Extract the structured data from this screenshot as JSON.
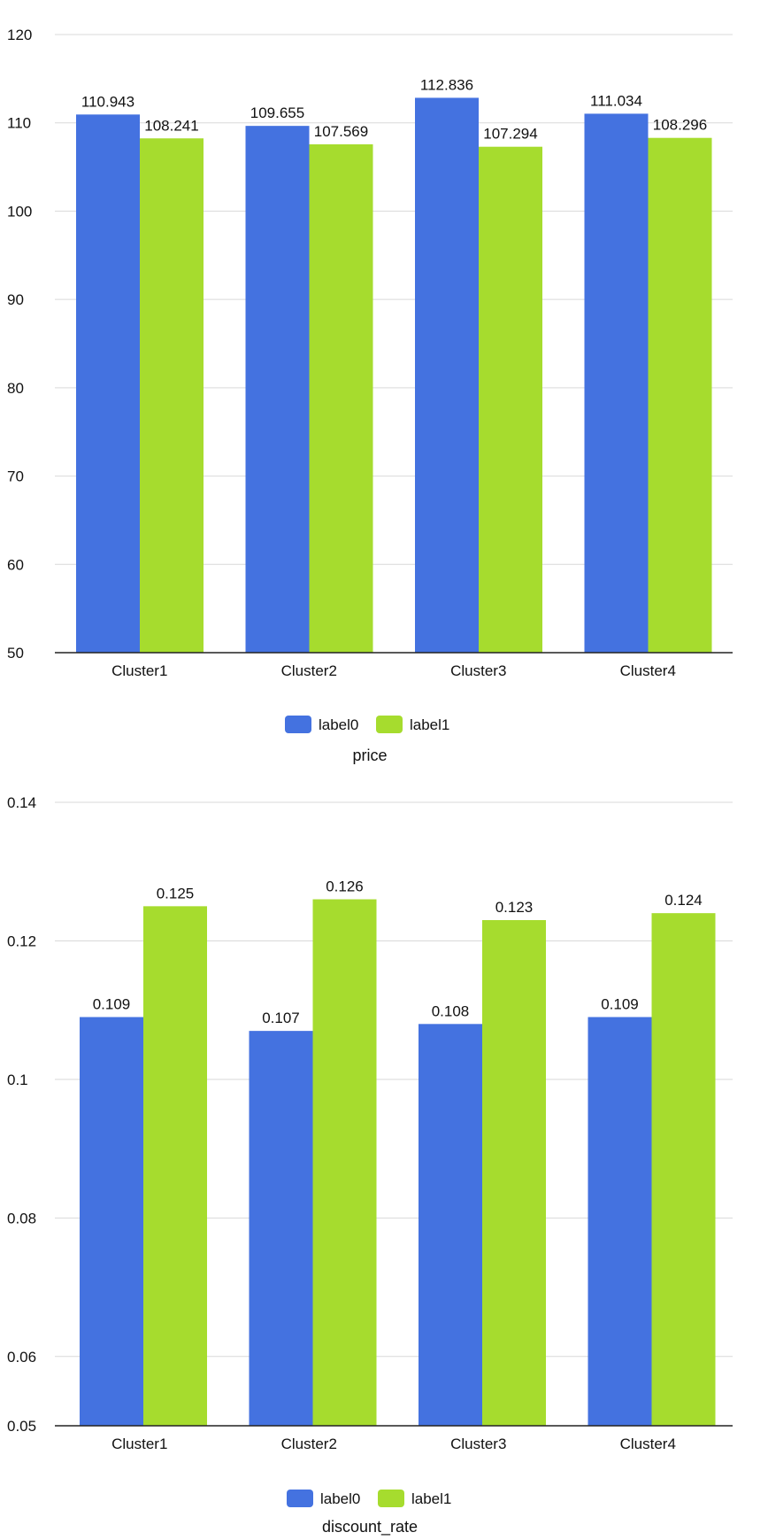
{
  "colors": {
    "label0": "#4472e0",
    "label1": "#a6dc2e",
    "grid": "#d9d9d9"
  },
  "chart_data": [
    {
      "type": "bar",
      "title": "",
      "xlabel": "price",
      "ylabel": "",
      "categories": [
        "Cluster1",
        "Cluster2",
        "Cluster3",
        "Cluster4"
      ],
      "series": [
        {
          "name": "label0",
          "values": [
            110.943,
            109.655,
            112.836,
            111.034
          ],
          "labels": [
            "110.943",
            "109.655",
            "112.836",
            "111.034"
          ]
        },
        {
          "name": "label1",
          "values": [
            108.241,
            107.569,
            107.294,
            108.296
          ],
          "labels": [
            "108.241",
            "107.569",
            "107.294",
            "108.296"
          ]
        }
      ],
      "ylim": [
        50,
        120
      ],
      "yticks": [
        50,
        60,
        70,
        80,
        90,
        100,
        110,
        120
      ],
      "ytick_labels": [
        "50",
        "60",
        "70",
        "80",
        "90",
        "100",
        "110",
        "120"
      ],
      "legend": "bottom-center",
      "grid": true
    },
    {
      "type": "bar",
      "title": "",
      "xlabel": "discount_rate",
      "ylabel": "",
      "categories": [
        "Cluster1",
        "Cluster2",
        "Cluster3",
        "Cluster4"
      ],
      "series": [
        {
          "name": "label0",
          "values": [
            0.109,
            0.107,
            0.108,
            0.109
          ],
          "labels": [
            "0.109",
            "0.107",
            "0.108",
            "0.109"
          ]
        },
        {
          "name": "label1",
          "values": [
            0.125,
            0.126,
            0.123,
            0.124
          ],
          "labels": [
            "0.125",
            "0.126",
            "0.123",
            "0.124"
          ]
        }
      ],
      "ylim": [
        0.05,
        0.14
      ],
      "yticks": [
        0.05,
        0.06,
        0.08,
        0.1,
        0.12,
        0.14
      ],
      "ytick_labels": [
        "0.05",
        "0.06",
        "0.08",
        "0.1",
        "0.12",
        "0.14"
      ],
      "legend": "bottom-center",
      "grid": true
    }
  ]
}
